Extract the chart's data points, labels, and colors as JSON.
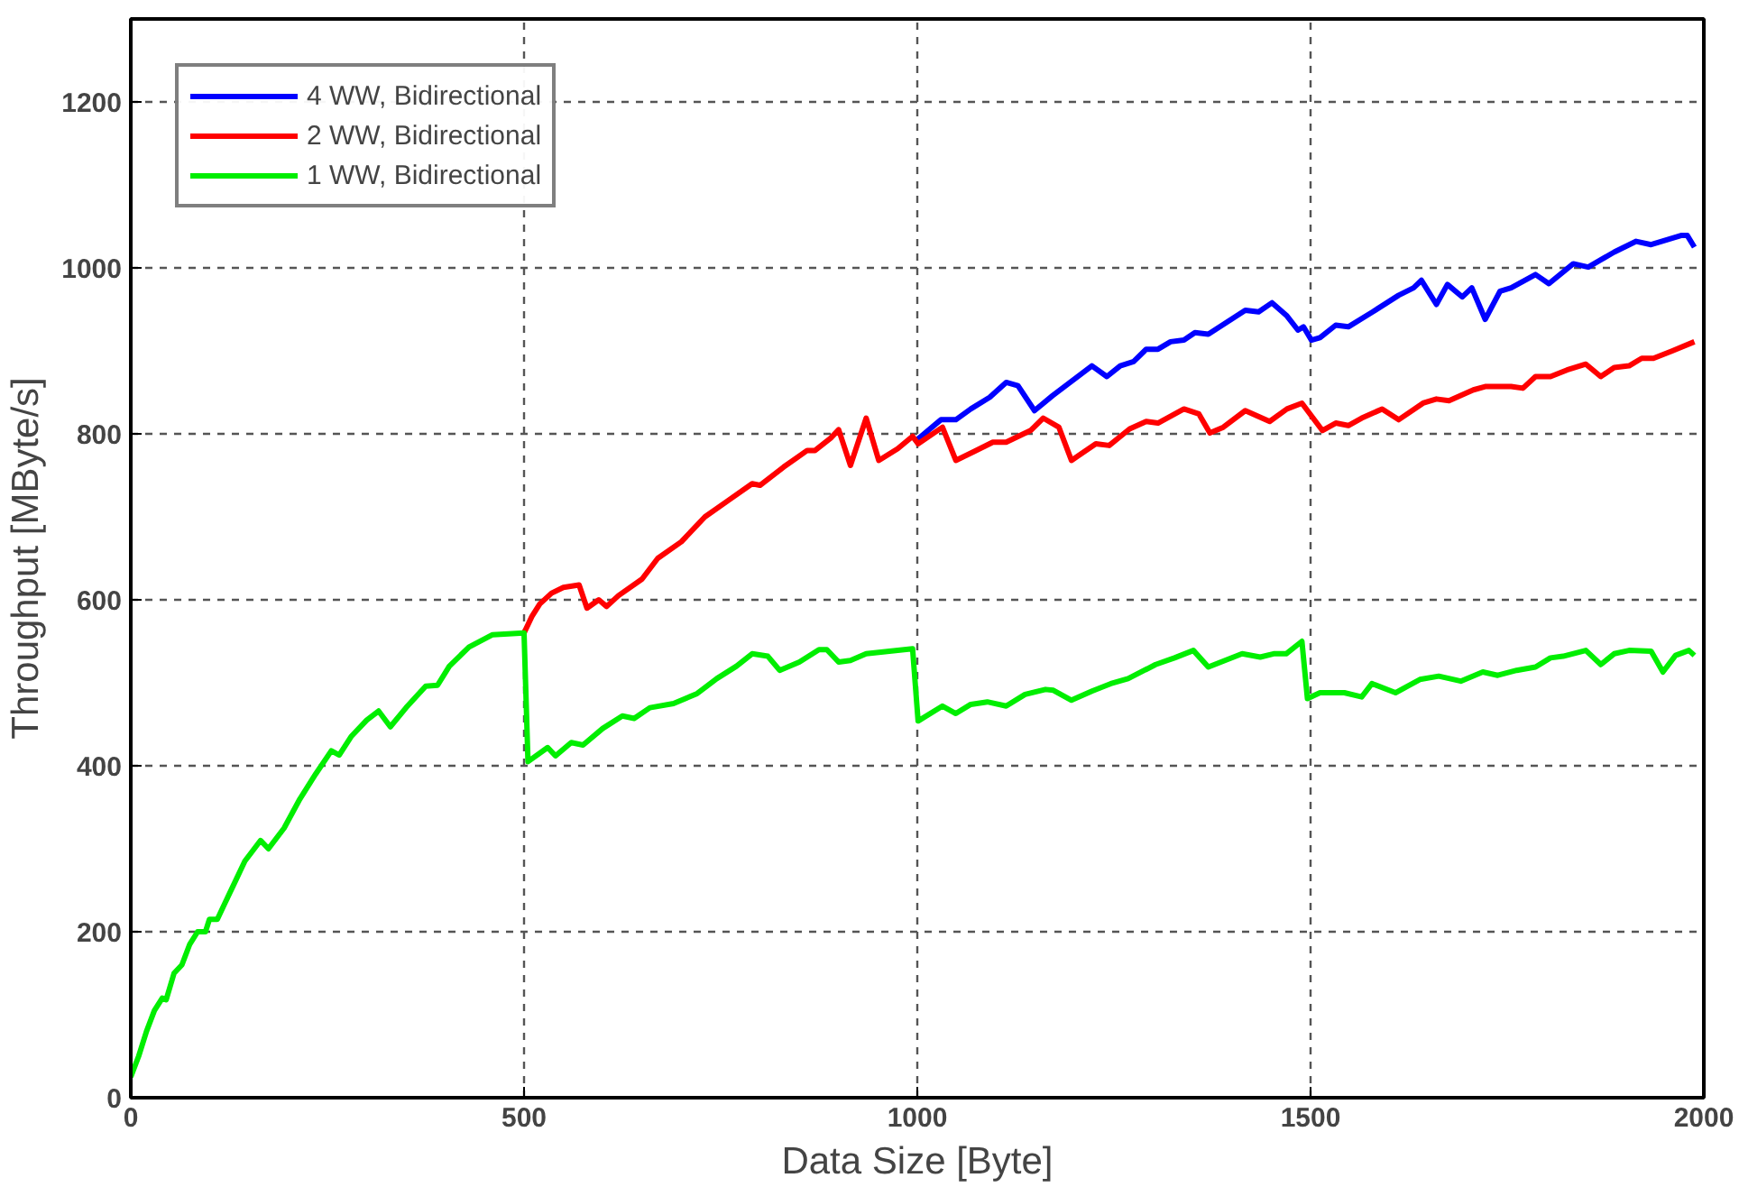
{
  "chart_data": {
    "type": "line",
    "xlabel": "Data Size [Byte]",
    "ylabel": "Throughput [MByte/s]",
    "xlim": [
      0,
      2000
    ],
    "ylim": [
      0,
      1300
    ],
    "xticks": [
      0,
      500,
      1000,
      1500,
      2000
    ],
    "yticks": [
      0,
      200,
      400,
      600,
      800,
      1000,
      1200
    ],
    "grid": true,
    "legend": "top left",
    "line_style": "solid",
    "marker": "none",
    "series": [
      {
        "name": "4 WW, Bidirectional",
        "color": "#0000ff",
        "x": [
          996,
          1030,
          1049,
          1068,
          1092,
          1113,
          1128,
          1149,
          1172,
          1222,
          1241,
          1258,
          1275,
          1291,
          1306,
          1322,
          1339,
          1353,
          1370,
          1417,
          1434,
          1451,
          1470,
          1484,
          1491,
          1501,
          1512,
          1532,
          1548,
          1579,
          1612,
          1631,
          1641,
          1660,
          1674,
          1693,
          1705,
          1722,
          1741,
          1755,
          1786,
          1803,
          1834,
          1853,
          1886,
          1914,
          1933,
          1971,
          1979,
          1988
        ],
        "values": [
          790,
          817,
          817,
          830,
          844,
          862,
          858,
          828,
          846,
          882,
          869,
          882,
          887,
          902,
          902,
          911,
          913,
          922,
          920,
          949,
          947,
          958,
          942,
          925,
          929,
          913,
          916,
          931,
          929,
          947,
          967,
          976,
          985,
          956,
          980,
          965,
          976,
          938,
          972,
          976,
          992,
          981,
          1005,
          1001,
          1019,
          1032,
          1028,
          1039,
          1039,
          1025
        ]
      },
      {
        "name": "2 WW, Bidirectional",
        "color": "#ff0000",
        "x": [
          500,
          510,
          520,
          535,
          550,
          570,
          580,
          595,
          605,
          620,
          650,
          670,
          700,
          730,
          760,
          790,
          800,
          830,
          860,
          870,
          890,
          900,
          915,
          935,
          951,
          975,
          994,
          1001,
          1032,
          1049,
          1073,
          1096,
          1113,
          1144,
          1160,
          1180,
          1196,
          1227,
          1244,
          1270,
          1291,
          1306,
          1339,
          1358,
          1372,
          1389,
          1417,
          1448,
          1470,
          1489,
          1515,
          1532,
          1548,
          1565,
          1591,
          1612,
          1643,
          1660,
          1676,
          1707,
          1722,
          1755,
          1770,
          1786,
          1805,
          1826,
          1850,
          1869,
          1886,
          1905,
          1921,
          1936,
          1960,
          1988
        ],
        "values": [
          560,
          580,
          595,
          608,
          615,
          618,
          590,
          600,
          592,
          605,
          625,
          650,
          670,
          700,
          720,
          740,
          738,
          760,
          780,
          780,
          795,
          805,
          762,
          819,
          768,
          782,
          797,
          788,
          808,
          768,
          779,
          790,
          790,
          804,
          819,
          808,
          768,
          788,
          786,
          806,
          815,
          813,
          830,
          824,
          801,
          808,
          828,
          815,
          830,
          837,
          804,
          813,
          810,
          819,
          830,
          817,
          837,
          842,
          840,
          853,
          857,
          857,
          855,
          869,
          869,
          877,
          884,
          869,
          880,
          882,
          891,
          891,
          900,
          911
        ]
      },
      {
        "name": "1 WW, Bidirectional",
        "color": "#00ee00",
        "x": [
          0,
          10,
          20,
          30,
          40,
          45,
          55,
          65,
          75,
          85,
          95,
          100,
          110,
          120,
          130,
          145,
          165,
          175,
          195,
          215,
          235,
          255,
          265,
          280,
          300,
          315,
          330,
          350,
          375,
          390,
          405,
          430,
          460,
          500,
          505,
          530,
          540,
          560,
          575,
          600,
          625,
          640,
          660,
          690,
          720,
          745,
          770,
          790,
          810,
          825,
          850,
          875,
          885,
          900,
          915,
          935,
          994,
          1001,
          1032,
          1049,
          1068,
          1089,
          1113,
          1137,
          1163,
          1173,
          1196,
          1222,
          1246,
          1268,
          1303,
          1327,
          1351,
          1370,
          1413,
          1436,
          1453,
          1469,
          1489,
          1496,
          1512,
          1543,
          1565,
          1578,
          1608,
          1639,
          1663,
          1691,
          1719,
          1738,
          1762,
          1786,
          1805,
          1821,
          1850,
          1869,
          1886,
          1905,
          1933,
          1948,
          1964,
          1981,
          1988
        ],
        "values": [
          25,
          50,
          80,
          105,
          120,
          118,
          150,
          160,
          185,
          200,
          200,
          215,
          215,
          235,
          255,
          285,
          310,
          300,
          325,
          360,
          390,
          418,
          413,
          435,
          455,
          466,
          447,
          470,
          496,
          497,
          520,
          543,
          558,
          560,
          405,
          422,
          412,
          428,
          425,
          445,
          460,
          457,
          470,
          475,
          487,
          505,
          520,
          535,
          532,
          515,
          525,
          540,
          540,
          525,
          527,
          535,
          541,
          454,
          472,
          463,
          474,
          477,
          472,
          486,
          492,
          491,
          479,
          490,
          499,
          505,
          522,
          530,
          539,
          519,
          535,
          531,
          535,
          535,
          550,
          481,
          488,
          488,
          483,
          499,
          488,
          504,
          508,
          502,
          513,
          509,
          515,
          519,
          530,
          532,
          539,
          522,
          535,
          539,
          538,
          513,
          533,
          539,
          533
        ]
      }
    ]
  }
}
